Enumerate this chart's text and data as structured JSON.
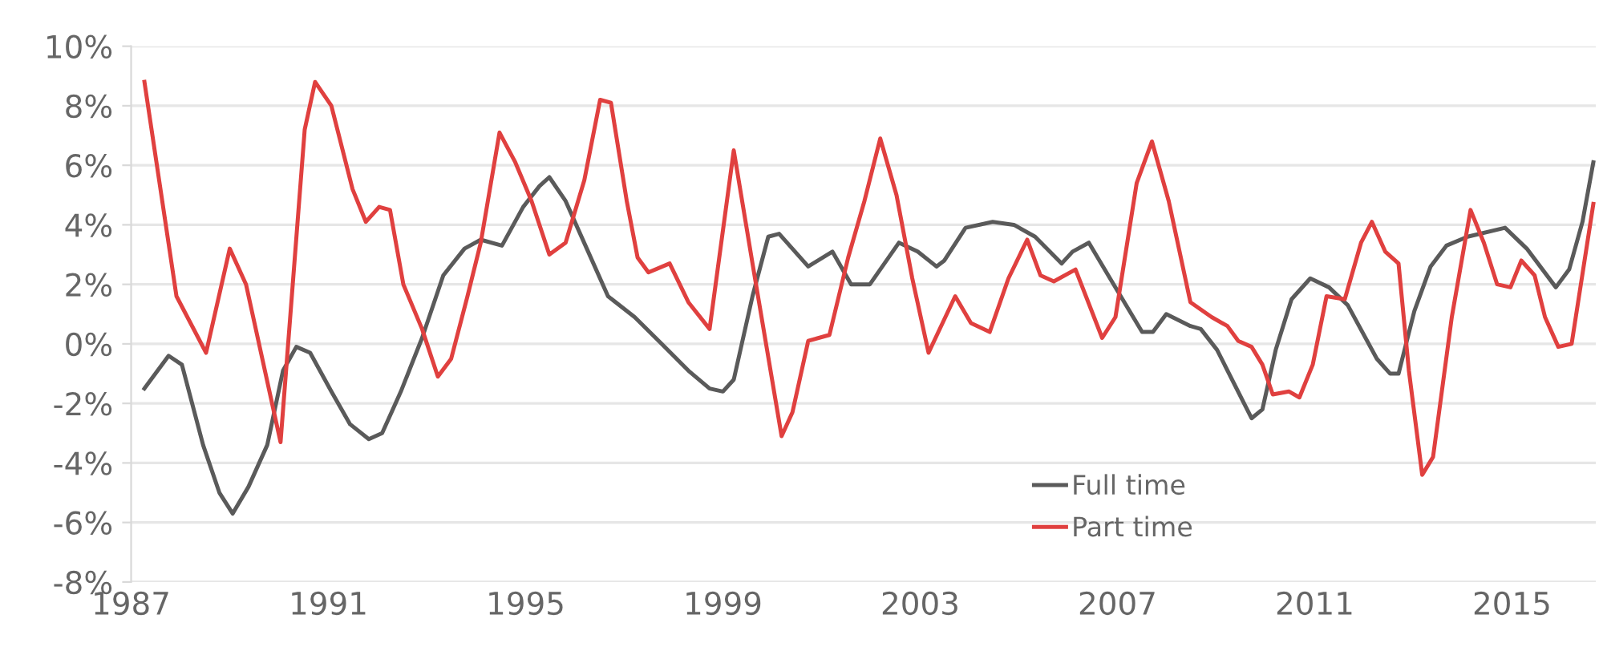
{
  "chart_data": {
    "type": "line",
    "xlim": [
      1987,
      2016.7
    ],
    "xticks": [
      1987,
      1991,
      1995,
      1999,
      2003,
      2007,
      2011,
      2015
    ],
    "ylim": [
      -8,
      10
    ],
    "yticks": [
      {
        "value": -8,
        "label": "-8%"
      },
      {
        "value": -6,
        "label": "-6%"
      },
      {
        "value": -4,
        "label": "-4%"
      },
      {
        "value": -2,
        "label": "-2%"
      },
      {
        "value": 0,
        "label": "0%"
      },
      {
        "value": 2,
        "label": "2%"
      },
      {
        "value": 4,
        "label": "4%"
      },
      {
        "value": 6,
        "label": "6%"
      },
      {
        "value": 8,
        "label": "8%"
      },
      {
        "value": 10,
        "label": "10%"
      }
    ],
    "grid": "y",
    "legend": "bottom",
    "marker": "none",
    "line_style": "solid",
    "series": [
      {
        "name": "Full time",
        "color": "#5a5a5a",
        "x": [
          1987.27,
          1987.76,
          1988.03,
          1988.46,
          1988.79,
          1989.06,
          1989.38,
          1989.76,
          1990.08,
          1990.35,
          1990.63,
          1991.06,
          1991.44,
          1991.82,
          1992.09,
          1992.47,
          1992.9,
          1993.33,
          1993.76,
          1994.09,
          1994.52,
          1994.95,
          1995.28,
          1995.48,
          1995.81,
          1996.24,
          1996.67,
          1997.21,
          1997.76,
          1998.3,
          1998.73,
          1999.0,
          1999.22,
          1999.6,
          1999.92,
          2000.14,
          2000.73,
          2001.22,
          2001.6,
          2001.98,
          2002.57,
          2002.95,
          2003.33,
          2003.49,
          2003.92,
          2004.47,
          2004.9,
          2005.33,
          2005.87,
          2006.09,
          2006.42,
          2006.85,
          2007.5,
          2007.72,
          2007.99,
          2008.48,
          2008.69,
          2009.02,
          2009.72,
          2009.94,
          2010.21,
          2010.53,
          2010.91,
          2011.29,
          2011.67,
          2012.26,
          2012.53,
          2012.7,
          2013.02,
          2013.35,
          2013.67,
          2014.1,
          2014.86,
          2015.3,
          2015.89,
          2016.16,
          2016.43,
          2016.65
        ],
        "values": [
          -1.5,
          -0.4,
          -0.7,
          -3.4,
          -5.0,
          -5.7,
          -4.8,
          -3.4,
          -0.9,
          -0.1,
          -0.3,
          -1.6,
          -2.7,
          -3.2,
          -3.0,
          -1.6,
          0.2,
          2.3,
          3.2,
          3.5,
          3.3,
          4.6,
          5.3,
          5.6,
          4.8,
          3.2,
          1.6,
          0.9,
          0.0,
          -0.9,
          -1.5,
          -1.6,
          -1.2,
          1.6,
          3.6,
          3.7,
          2.6,
          3.1,
          2.0,
          2.0,
          3.4,
          3.1,
          2.6,
          2.8,
          3.9,
          4.1,
          4.0,
          3.6,
          2.7,
          3.1,
          3.4,
          2.2,
          0.4,
          0.4,
          1.0,
          0.6,
          0.5,
          -0.2,
          -2.5,
          -2.2,
          -0.2,
          1.5,
          2.2,
          1.9,
          1.3,
          -0.5,
          -1.0,
          -1.0,
          1.1,
          2.6,
          3.3,
          3.6,
          3.9,
          3.2,
          1.9,
          2.5,
          4.1,
          6.1
        ]
      },
      {
        "name": "Part time",
        "color": "#e0403f",
        "x": [
          1987.27,
          1987.92,
          1988.52,
          1989.0,
          1989.33,
          1990.03,
          1990.52,
          1990.73,
          1991.06,
          1991.49,
          1991.76,
          1992.03,
          1992.25,
          1992.52,
          1992.9,
          1993.22,
          1993.49,
          1993.82,
          1994.09,
          1994.47,
          1994.79,
          1995.12,
          1995.48,
          1995.81,
          1996.19,
          1996.51,
          1996.73,
          1997.05,
          1997.27,
          1997.49,
          1997.92,
          1998.3,
          1998.73,
          1999.22,
          1999.6,
          2000.19,
          2000.41,
          2000.73,
          2001.16,
          2001.54,
          2001.87,
          2002.19,
          2002.52,
          2002.84,
          2003.17,
          2003.71,
          2004.03,
          2004.41,
          2004.79,
          2005.17,
          2005.44,
          2005.71,
          2006.15,
          2006.69,
          2006.96,
          2007.39,
          2007.7,
          2008.04,
          2008.48,
          2008.91,
          2009.23,
          2009.45,
          2009.72,
          2009.94,
          2010.15,
          2010.48,
          2010.69,
          2010.96,
          2011.24,
          2011.61,
          2011.94,
          2012.16,
          2012.43,
          2012.7,
          2012.91,
          2013.18,
          2013.4,
          2013.78,
          2014.16,
          2014.43,
          2014.7,
          2014.97,
          2015.19,
          2015.46,
          2015.67,
          2015.94,
          2016.21,
          2016.65
        ],
        "values": [
          8.8,
          1.6,
          -0.3,
          3.2,
          2.0,
          -3.3,
          7.2,
          8.8,
          8.0,
          5.2,
          4.1,
          4.6,
          4.5,
          2.0,
          0.5,
          -1.1,
          -0.5,
          1.6,
          3.4,
          7.1,
          6.1,
          4.8,
          3.0,
          3.4,
          5.5,
          8.2,
          8.1,
          4.8,
          2.9,
          2.4,
          2.7,
          1.4,
          0.5,
          6.5,
          2.7,
          -3.1,
          -2.3,
          0.1,
          0.3,
          2.9,
          4.8,
          6.9,
          5.0,
          2.2,
          -0.3,
          1.6,
          0.7,
          0.4,
          2.2,
          3.5,
          2.3,
          2.1,
          2.5,
          0.2,
          0.9,
          5.4,
          6.8,
          4.8,
          1.4,
          0.9,
          0.6,
          0.1,
          -0.1,
          -0.7,
          -1.7,
          -1.6,
          -1.8,
          -0.7,
          1.6,
          1.5,
          3.4,
          4.1,
          3.1,
          2.7,
          -0.9,
          -4.4,
          -3.8,
          0.9,
          4.5,
          3.4,
          2.0,
          1.9,
          2.8,
          2.3,
          0.9,
          -0.1,
          0.0,
          4.7
        ]
      }
    ]
  }
}
